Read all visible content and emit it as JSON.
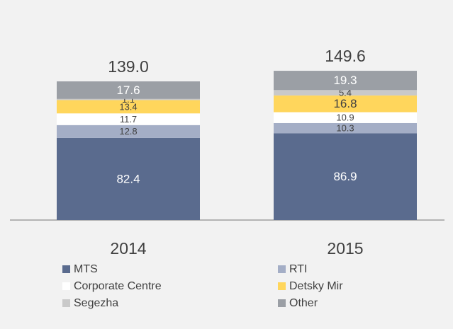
{
  "chart_data": {
    "type": "stacked_bar",
    "categories": [
      "2014",
      "2015"
    ],
    "series": [
      {
        "name": "MTS",
        "color": "#5a6b8e",
        "label_color": "#ffffff",
        "values": [
          82.4,
          86.9
        ]
      },
      {
        "name": "RTI",
        "color": "#a4aec6",
        "label_color": "#404040",
        "values": [
          12.8,
          10.3
        ]
      },
      {
        "name": "Corporate Centre",
        "color": "#ffffff",
        "label_color": "#404040",
        "values": [
          11.7,
          10.9
        ]
      },
      {
        "name": "Detsky Mir",
        "color": "#ffd65c",
        "label_color": "#404040",
        "values": [
          13.4,
          16.8
        ]
      },
      {
        "name": "Segezha",
        "color": "#c9c9c9",
        "label_color": "#404040",
        "values": [
          1.1,
          5.4
        ]
      },
      {
        "name": "Other",
        "color": "#9b9fa5",
        "label_color": "#ffffff",
        "values": [
          17.6,
          19.3
        ]
      }
    ],
    "totals": [
      {
        "value": 139.0,
        "label": "139.0"
      },
      {
        "value": 149.6,
        "label": "149.6"
      }
    ]
  }
}
